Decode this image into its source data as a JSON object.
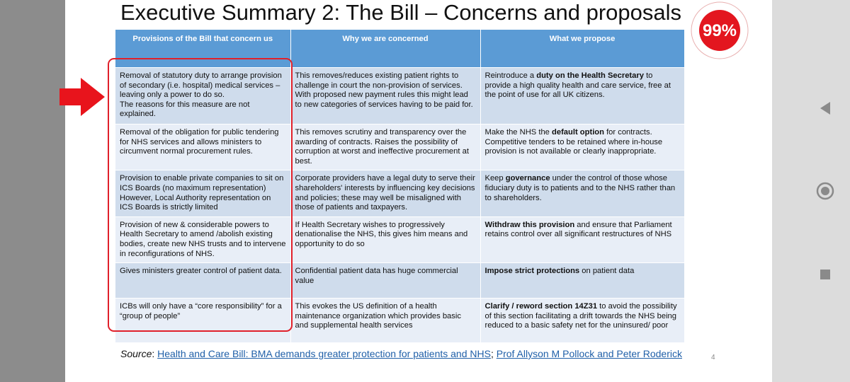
{
  "slide": {
    "title": "Executive Summary 2: The Bill – Concerns and proposals",
    "badge": "99%",
    "page_number": "4"
  },
  "table": {
    "headers": [
      "Provisions of the Bill that concern us",
      "Why we are concerned",
      "What we propose"
    ],
    "rows": [
      [
        [
          "Removal of statutory duty to arrange provision of secondary (i.e. hospital) medical services – leaving only a power to do so.\nThe reasons for this measure are not explained."
        ],
        [
          "This removes/reduces existing patient rights to challenge in court the non-provision of services. With proposed new payment rules this might lead to new categories of services having to be paid for."
        ],
        [
          "Reintroduce a ",
          "duty on the Health Secretary",
          " to provide a high quality health and care service, free at the point of use for all UK citizens."
        ]
      ],
      [
        [
          "Removal of the obligation for public tendering for NHS services and allows ministers to circumvent normal procurement rules."
        ],
        [
          "This removes scrutiny and transparency over the awarding of contracts. Raises the possibility of corruption at worst and ineffective procurement at best."
        ],
        [
          "Make the NHS the ",
          "default option",
          " for contracts. Competitive tenders to be retained where in-house provision is not available or clearly inappropriate."
        ]
      ],
      [
        [
          "Provision to enable private companies to sit on ICS Boards (no maximum representation) However, Local Authority representation on ICS Boards is strictly limited"
        ],
        [
          "Corporate providers have a legal duty to serve their shareholders' interests by influencing key decisions and policies; these may well be misaligned with those of patients and taxpayers."
        ],
        [
          "Keep ",
          "governance",
          " under the control of those whose fiduciary duty is to patients and to the NHS rather than to shareholders."
        ]
      ],
      [
        [
          "Provision of new & considerable powers to Health Secretary to amend /abolish existing bodies, create new NHS trusts and to intervene in reconfigurations of NHS."
        ],
        [
          "If Health Secretary wishes to progressively denationalise the NHS, this gives him means and opportunity to do so"
        ],
        [
          "",
          "Withdraw this provision",
          " and ensure that Parliament retains control over all significant restructures of NHS"
        ]
      ],
      [
        [
          "Gives ministers greater control of patient data."
        ],
        [
          "Confidential patient data has huge commercial value"
        ],
        [
          "",
          "Impose strict protections",
          " on patient data"
        ]
      ],
      [
        [
          "ICBs will only have a “core responsibility” for a “group of people”"
        ],
        [
          "This evokes the US definition of a health maintenance organization which provides basic and supplemental health services"
        ],
        [
          "",
          "Clarify / reword section 14Z31",
          " to avoid the possibility of this section facilitating a drift towards the NHS being reduced to a basic safety net for the uninsured/ poor"
        ]
      ]
    ]
  },
  "source": {
    "label": "Source",
    "separator": ": ",
    "links": [
      "Health and Care Bill: BMA demands greater protection for patients and NHS",
      "Prof Allyson M Pollock and Peter Roderick"
    ],
    "link_separator": "; "
  }
}
